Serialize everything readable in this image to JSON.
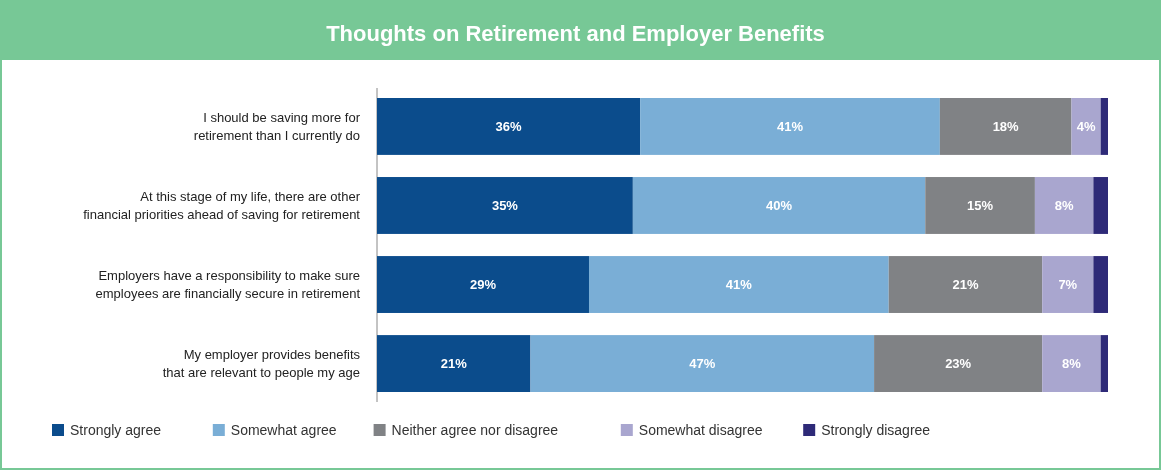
{
  "chart_data": {
    "type": "bar",
    "orientation": "horizontal",
    "stacked": true,
    "title": "Thoughts on Retirement and Employer Benefits",
    "categories": [
      "I should be saving more for retirement than I currently do",
      "At this stage of my life, there are other financial priorities ahead of saving for retirement",
      "Employers have a responsibility to make sure employees are financially secure in retirement",
      "My employer provides benefits that are relevant to people my age"
    ],
    "series": [
      {
        "name": "Strongly agree",
        "color": "#0b4c8c",
        "values": [
          36,
          35,
          29,
          21
        ],
        "value_labels": [
          "36%",
          "35%",
          "29%",
          "21%"
        ]
      },
      {
        "name": "Somewhat agree",
        "color": "#7aaed6",
        "values": [
          41,
          40,
          41,
          47
        ],
        "value_labels": [
          "41%",
          "40%",
          "41%",
          "47%"
        ]
      },
      {
        "name": "Neither agree nor disagree",
        "color": "#808285",
        "values": [
          18,
          15,
          21,
          23
        ],
        "value_labels": [
          "18%",
          "15%",
          "21%",
          "23%"
        ]
      },
      {
        "name": "Somewhat disagree",
        "color": "#a9a6cf",
        "values": [
          4,
          8,
          7,
          8
        ],
        "value_labels": [
          "4%",
          "8%",
          "7%",
          "8%"
        ]
      },
      {
        "name": "Strongly disagree",
        "color": "#2e2a78",
        "values": [
          1,
          2,
          2,
          1
        ],
        "value_labels": [
          null,
          null,
          null,
          null
        ]
      }
    ],
    "legend": "bottom left"
  }
}
